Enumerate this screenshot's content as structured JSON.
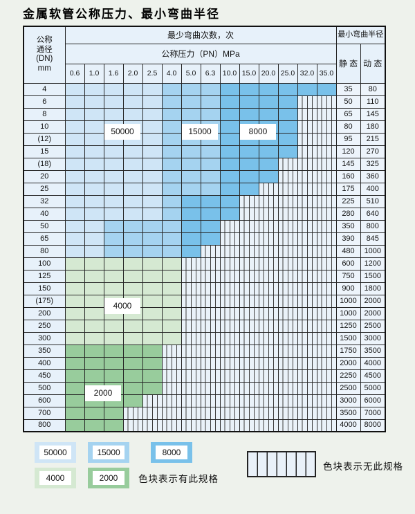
{
  "title": "金属软管公称压力、最小弯曲半径",
  "colors": {
    "50000": "#cfe5f6",
    "15000": "#a5d3f0",
    "8000": "#79c1ea",
    "4000": "#d5e9d2",
    "2000": "#98cc9c",
    "hatch_bg": "#eaf2f9",
    "hatch_line": "#3c3c3c"
  },
  "table": {
    "header": {
      "dn_lines": [
        "公称",
        "通径",
        "(DN)",
        "mm"
      ],
      "bend_times_label": "最少弯曲次数，次",
      "pressure_label": "公称压力（PN）MPa",
      "radius_label": "最小弯曲半径",
      "static_label": "静 态",
      "dynamic_label": "动 态",
      "pressures": [
        "0.6",
        "1.0",
        "1.6",
        "2.0",
        "2.5",
        "4.0",
        "5.0",
        "6.3",
        "10.0",
        "15.0",
        "20.0",
        "25.0",
        "32.0",
        "35.0"
      ]
    },
    "rows": [
      {
        "dn": "4",
        "pattern": [
          [
            "50000",
            5
          ],
          [
            "15000",
            3
          ],
          [
            "8000",
            6
          ]
        ],
        "static": "35",
        "dynamic": "80"
      },
      {
        "dn": "6",
        "pattern": [
          [
            "50000",
            5
          ],
          [
            "15000",
            3
          ],
          [
            "8000",
            4
          ],
          [
            "none",
            2
          ]
        ],
        "static": "50",
        "dynamic": "110"
      },
      {
        "dn": "8",
        "pattern": [
          [
            "50000",
            5
          ],
          [
            "15000",
            3
          ],
          [
            "8000",
            4
          ],
          [
            "none",
            2
          ]
        ],
        "static": "65",
        "dynamic": "145"
      },
      {
        "dn": "10",
        "pattern": [
          [
            "50000",
            5
          ],
          [
            "15000",
            3
          ],
          [
            "8000",
            4
          ],
          [
            "none",
            2
          ]
        ],
        "static": "80",
        "dynamic": "180"
      },
      {
        "dn": "(12)",
        "pattern": [
          [
            "50000",
            5
          ],
          [
            "15000",
            3
          ],
          [
            "8000",
            4
          ],
          [
            "none",
            2
          ]
        ],
        "static": "95",
        "dynamic": "215"
      },
      {
        "dn": "15",
        "pattern": [
          [
            "50000",
            5
          ],
          [
            "15000",
            3
          ],
          [
            "8000",
            4
          ],
          [
            "none",
            2
          ]
        ],
        "static": "120",
        "dynamic": "270"
      },
      {
        "dn": "(18)",
        "pattern": [
          [
            "50000",
            5
          ],
          [
            "15000",
            3
          ],
          [
            "8000",
            3
          ],
          [
            "none",
            3
          ]
        ],
        "static": "145",
        "dynamic": "325"
      },
      {
        "dn": "20",
        "pattern": [
          [
            "50000",
            5
          ],
          [
            "15000",
            3
          ],
          [
            "8000",
            3
          ],
          [
            "none",
            3
          ]
        ],
        "static": "160",
        "dynamic": "360"
      },
      {
        "dn": "25",
        "pattern": [
          [
            "50000",
            5
          ],
          [
            "15000",
            3
          ],
          [
            "8000",
            2
          ],
          [
            "none",
            4
          ]
        ],
        "static": "175",
        "dynamic": "400"
      },
      {
        "dn": "32",
        "pattern": [
          [
            "50000",
            5
          ],
          [
            "15000",
            1
          ],
          [
            "8000",
            3
          ],
          [
            "none",
            5
          ]
        ],
        "static": "225",
        "dynamic": "510"
      },
      {
        "dn": "40",
        "pattern": [
          [
            "50000",
            5
          ],
          [
            "15000",
            1
          ],
          [
            "8000",
            3
          ],
          [
            "none",
            5
          ]
        ],
        "static": "280",
        "dynamic": "640"
      },
      {
        "dn": "50",
        "pattern": [
          [
            "50000",
            2
          ],
          [
            "15000",
            4
          ],
          [
            "8000",
            2
          ],
          [
            "none",
            6
          ]
        ],
        "static": "350",
        "dynamic": "800"
      },
      {
        "dn": "65",
        "pattern": [
          [
            "50000",
            2
          ],
          [
            "15000",
            4
          ],
          [
            "8000",
            2
          ],
          [
            "none",
            6
          ]
        ],
        "static": "390",
        "dynamic": "845"
      },
      {
        "dn": "80",
        "pattern": [
          [
            "50000",
            2
          ],
          [
            "15000",
            4
          ],
          [
            "8000",
            1
          ],
          [
            "none",
            7
          ]
        ],
        "static": "480",
        "dynamic": "1000"
      },
      {
        "dn": "100",
        "pattern": [
          [
            "4000",
            6
          ],
          [
            "none",
            8
          ]
        ],
        "static": "600",
        "dynamic": "1200"
      },
      {
        "dn": "125",
        "pattern": [
          [
            "4000",
            6
          ],
          [
            "none",
            8
          ]
        ],
        "static": "750",
        "dynamic": "1500"
      },
      {
        "dn": "150",
        "pattern": [
          [
            "4000",
            6
          ],
          [
            "none",
            8
          ]
        ],
        "static": "900",
        "dynamic": "1800"
      },
      {
        "dn": "(175)",
        "pattern": [
          [
            "4000",
            6
          ],
          [
            "none",
            8
          ]
        ],
        "static": "1000",
        "dynamic": "2000"
      },
      {
        "dn": "200",
        "pattern": [
          [
            "4000",
            6
          ],
          [
            "none",
            8
          ]
        ],
        "static": "1000",
        "dynamic": "2000"
      },
      {
        "dn": "250",
        "pattern": [
          [
            "4000",
            6
          ],
          [
            "none",
            8
          ]
        ],
        "static": "1250",
        "dynamic": "2500"
      },
      {
        "dn": "300",
        "pattern": [
          [
            "4000",
            6
          ],
          [
            "none",
            8
          ]
        ],
        "static": "1500",
        "dynamic": "3000"
      },
      {
        "dn": "350",
        "pattern": [
          [
            "2000",
            5
          ],
          [
            "none",
            9
          ]
        ],
        "static": "1750",
        "dynamic": "3500"
      },
      {
        "dn": "400",
        "pattern": [
          [
            "2000",
            5
          ],
          [
            "none",
            9
          ]
        ],
        "static": "2000",
        "dynamic": "4000"
      },
      {
        "dn": "450",
        "pattern": [
          [
            "2000",
            5
          ],
          [
            "none",
            9
          ]
        ],
        "static": "2250",
        "dynamic": "4500"
      },
      {
        "dn": "500",
        "pattern": [
          [
            "2000",
            5
          ],
          [
            "none",
            9
          ]
        ],
        "static": "2500",
        "dynamic": "5000"
      },
      {
        "dn": "600",
        "pattern": [
          [
            "2000",
            4
          ],
          [
            "none",
            10
          ]
        ],
        "static": "3000",
        "dynamic": "6000"
      },
      {
        "dn": "700",
        "pattern": [
          [
            "2000",
            3
          ],
          [
            "none",
            11
          ]
        ],
        "static": "3500",
        "dynamic": "7000"
      },
      {
        "dn": "800",
        "pattern": [
          [
            "2000",
            3
          ],
          [
            "none",
            11
          ]
        ],
        "static": "4000",
        "dynamic": "8000"
      }
    ],
    "overlay_labels": [
      {
        "text": "50000",
        "cols": [
          2,
          3
        ],
        "after_row": 3
      },
      {
        "text": "15000",
        "cols": [
          6,
          7
        ],
        "after_row": 3
      },
      {
        "text": "8000",
        "cols": [
          9,
          10
        ],
        "after_row": 3
      },
      {
        "text": "4000",
        "cols": [
          2,
          3
        ],
        "after_row": 17
      },
      {
        "text": "2000",
        "cols": [
          1,
          2
        ],
        "after_row": 24
      }
    ]
  },
  "legend": {
    "has_spec": [
      "50000",
      "15000",
      "8000",
      "4000",
      "2000"
    ],
    "has_spec_note": "色块表示有此规格",
    "no_spec_note": "色块表示无此规格"
  }
}
